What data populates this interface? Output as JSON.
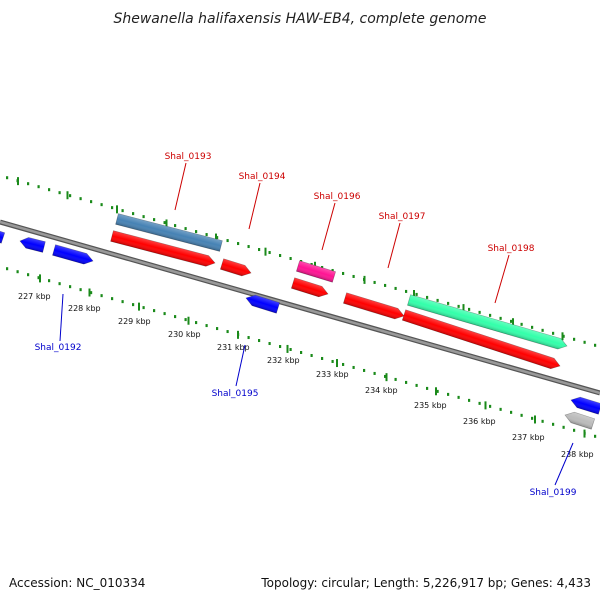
{
  "title": "Shewanella halifaxensis HAW-EB4, complete genome",
  "footer": {
    "accession": "Accession: NC_010334",
    "topology": "Topology: circular; Length: 5,226,917 bp; Genes: 4,433"
  },
  "kbp_labels": [
    "227 kbp",
    "228 kbp",
    "229 kbp",
    "230 kbp",
    "231 kbp",
    "232 kbp",
    "233 kbp",
    "234 kbp",
    "235 kbp",
    "236 kbp",
    "237 kbp",
    "238 kbp"
  ],
  "gene_labels": [
    {
      "text": "Shal_0193",
      "color": "#cc0000"
    },
    {
      "text": "Shal_0194",
      "color": "#cc0000"
    },
    {
      "text": "Shal_0196",
      "color": "#cc0000"
    },
    {
      "text": "Shal_0197",
      "color": "#cc0000"
    },
    {
      "text": "Shal_0198",
      "color": "#cc0000"
    },
    {
      "text": "Shal_0192",
      "color": "#0000cc"
    },
    {
      "text": "Shal_0195",
      "color": "#0000cc"
    },
    {
      "text": "Shal_0199",
      "color": "#0000cc"
    }
  ],
  "colors": {
    "backbone": "#888888",
    "tick": "#1a8a1a",
    "gene_red": "#ff0000",
    "gene_blue": "#0000ff",
    "gene_steel": "#4682b4",
    "gene_magenta": "#ff1493",
    "gene_teal": "#33ffaa",
    "gene_gray": "#bbbbbb"
  }
}
